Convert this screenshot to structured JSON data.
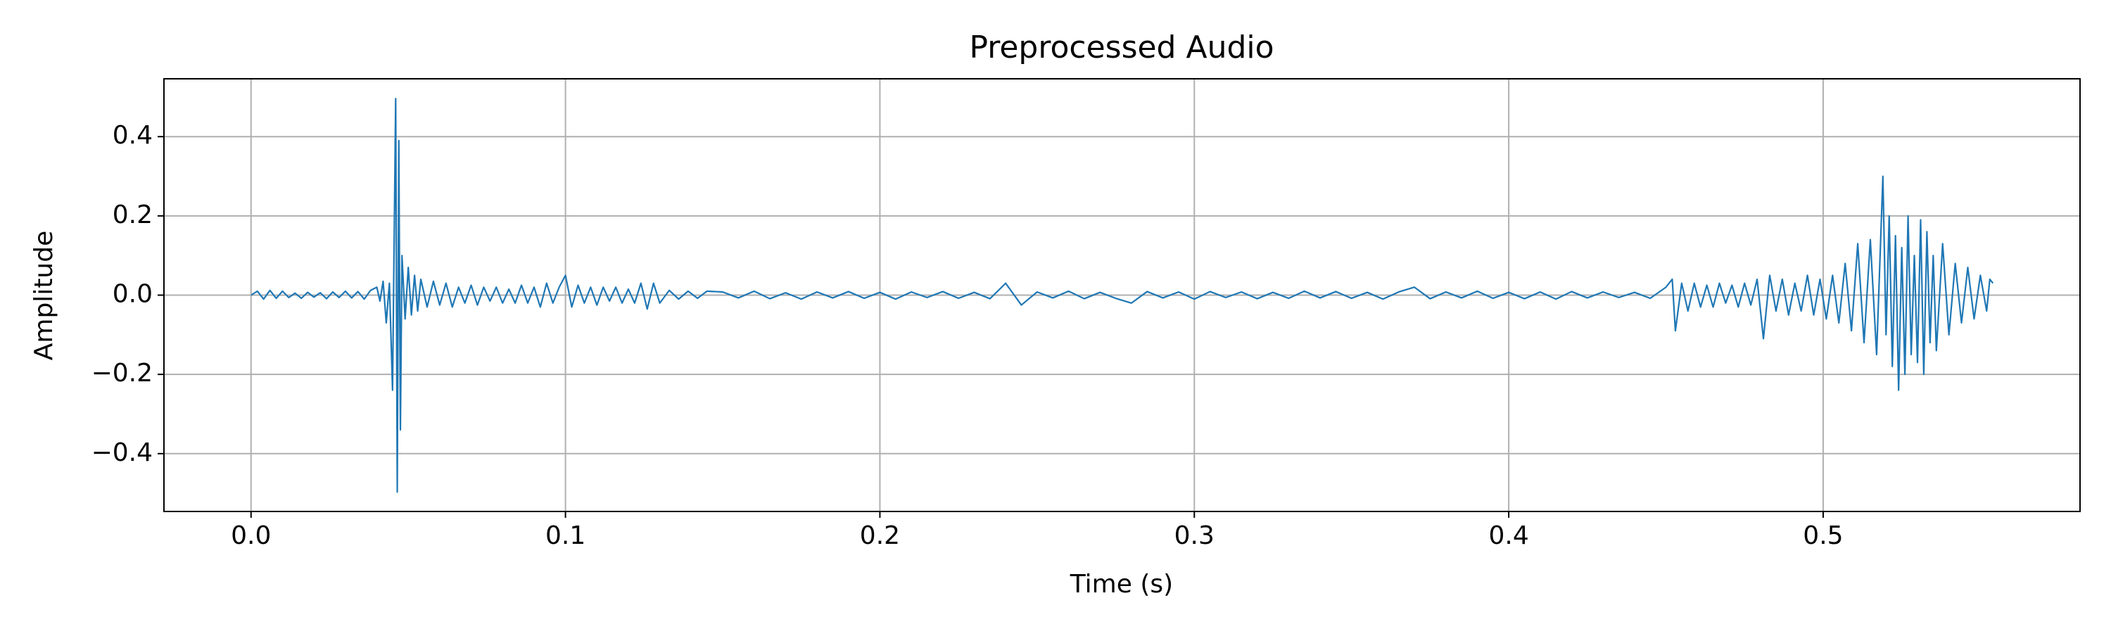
{
  "chart_data": {
    "type": "line",
    "title": "Preprocessed Audio",
    "x_label": "Time (s)",
    "y_label": "Amplitude",
    "grid": true,
    "xlim": [
      -0.0277,
      0.5817
    ],
    "ylim": [
      -0.546,
      0.546
    ],
    "xticks": [
      {
        "value": 0,
        "label": "0.0"
      },
      0.1,
      0.2,
      0.3,
      0.4,
      0.5
    ],
    "yticks": [
      {
        "value": -0.4,
        "label": "−0.4"
      },
      {
        "value": -0.2,
        "label": "−0.2"
      },
      {
        "value": 0,
        "label": "0.0"
      },
      0.2,
      0.4
    ],
    "series": [
      {
        "color": "#1f77b4",
        "x": [
          0.0,
          0.002,
          0.004,
          0.006,
          0.008,
          0.01,
          0.012,
          0.014,
          0.016,
          0.018,
          0.02,
          0.022,
          0.024,
          0.026,
          0.028,
          0.03,
          0.032,
          0.034,
          0.036,
          0.038,
          0.04,
          0.041,
          0.042,
          0.043,
          0.044,
          0.045,
          0.046,
          0.0465,
          0.047,
          0.0475,
          0.048,
          0.049,
          0.05,
          0.051,
          0.052,
          0.053,
          0.054,
          0.056,
          0.058,
          0.06,
          0.062,
          0.064,
          0.066,
          0.068,
          0.07,
          0.072,
          0.074,
          0.076,
          0.078,
          0.08,
          0.082,
          0.084,
          0.086,
          0.088,
          0.09,
          0.092,
          0.094,
          0.096,
          0.098,
          0.1,
          0.102,
          0.104,
          0.106,
          0.108,
          0.11,
          0.112,
          0.114,
          0.116,
          0.118,
          0.12,
          0.122,
          0.124,
          0.126,
          0.128,
          0.13,
          0.133,
          0.136,
          0.139,
          0.142,
          0.145,
          0.15,
          0.155,
          0.16,
          0.165,
          0.17,
          0.175,
          0.18,
          0.185,
          0.19,
          0.195,
          0.2,
          0.205,
          0.21,
          0.215,
          0.22,
          0.225,
          0.23,
          0.235,
          0.24,
          0.245,
          0.25,
          0.255,
          0.26,
          0.265,
          0.27,
          0.275,
          0.28,
          0.285,
          0.29,
          0.295,
          0.3,
          0.305,
          0.31,
          0.315,
          0.32,
          0.325,
          0.33,
          0.335,
          0.34,
          0.345,
          0.35,
          0.355,
          0.36,
          0.365,
          0.37,
          0.375,
          0.38,
          0.385,
          0.39,
          0.395,
          0.4,
          0.405,
          0.41,
          0.415,
          0.42,
          0.425,
          0.43,
          0.435,
          0.44,
          0.445,
          0.45,
          0.452,
          0.453,
          0.455,
          0.457,
          0.459,
          0.461,
          0.463,
          0.465,
          0.467,
          0.469,
          0.471,
          0.473,
          0.475,
          0.477,
          0.479,
          0.481,
          0.483,
          0.485,
          0.487,
          0.489,
          0.491,
          0.493,
          0.495,
          0.497,
          0.499,
          0.501,
          0.503,
          0.505,
          0.507,
          0.509,
          0.511,
          0.513,
          0.515,
          0.517,
          0.519,
          0.52,
          0.521,
          0.522,
          0.523,
          0.524,
          0.525,
          0.526,
          0.527,
          0.528,
          0.529,
          0.53,
          0.531,
          0.532,
          0.533,
          0.534,
          0.535,
          0.536,
          0.538,
          0.54,
          0.542,
          0.544,
          0.546,
          0.548,
          0.55,
          0.552,
          0.553,
          0.554
        ],
        "values": [
          0,
          0.01,
          -0.01,
          0.012,
          -0.008,
          0.01,
          -0.006,
          0.005,
          -0.008,
          0.007,
          -0.005,
          0.006,
          -0.009,
          0.008,
          -0.006,
          0.01,
          -0.007,
          0.009,
          -0.01,
          0.012,
          0.02,
          -0.015,
          0.035,
          -0.07,
          0.03,
          -0.24,
          0.496,
          -0.497,
          0.39,
          -0.34,
          0.1,
          -0.06,
          0.07,
          -0.05,
          0.05,
          -0.04,
          0.04,
          -0.03,
          0.035,
          -0.025,
          0.03,
          -0.03,
          0.02,
          -0.02,
          0.025,
          -0.025,
          0.02,
          -0.015,
          0.02,
          -0.02,
          0.015,
          -0.02,
          0.025,
          -0.02,
          0.02,
          -0.03,
          0.03,
          -0.02,
          0.02,
          0.05,
          -0.03,
          0.025,
          -0.02,
          0.02,
          -0.025,
          0.02,
          -0.015,
          0.02,
          -0.02,
          0.015,
          -0.02,
          0.03,
          -0.035,
          0.03,
          -0.02,
          0.012,
          -0.01,
          0.01,
          -0.008,
          0.01,
          0.008,
          -0.007,
          0.01,
          -0.009,
          0.006,
          -0.01,
          0.008,
          -0.007,
          0.009,
          -0.008,
          0.007,
          -0.01,
          0.008,
          -0.006,
          0.009,
          -0.008,
          0.007,
          -0.009,
          0.03,
          -0.025,
          0.008,
          -0.007,
          0.01,
          -0.009,
          0.007,
          -0.008,
          -0.02,
          0.009,
          -0.007,
          0.008,
          -0.01,
          0.009,
          -0.006,
          0.008,
          -0.009,
          0.007,
          -0.008,
          0.01,
          -0.007,
          0.009,
          -0.008,
          0.007,
          -0.01,
          0.008,
          0.02,
          -0.009,
          0.008,
          -0.007,
          0.01,
          -0.008,
          0.007,
          -0.009,
          0.008,
          -0.01,
          0.009,
          -0.007,
          0.008,
          -0.006,
          0.007,
          -0.008,
          0.02,
          0.04,
          -0.09,
          0.03,
          -0.04,
          0.03,
          -0.03,
          0.025,
          -0.03,
          0.03,
          -0.02,
          0.025,
          -0.03,
          0.03,
          -0.025,
          0.04,
          -0.11,
          0.05,
          -0.04,
          0.04,
          -0.05,
          0.03,
          -0.04,
          0.05,
          -0.05,
          0.04,
          -0.06,
          0.05,
          -0.07,
          0.08,
          -0.09,
          0.13,
          -0.12,
          0.14,
          -0.15,
          0.3,
          -0.1,
          0.2,
          -0.18,
          0.15,
          -0.24,
          0.12,
          -0.2,
          0.2,
          -0.15,
          0.1,
          -0.17,
          0.19,
          -0.2,
          0.16,
          -0.12,
          0.1,
          -0.14,
          0.13,
          -0.1,
          0.08,
          -0.07,
          0.07,
          -0.06,
          0.05,
          -0.04,
          0.04,
          0.03
        ]
      }
    ]
  }
}
